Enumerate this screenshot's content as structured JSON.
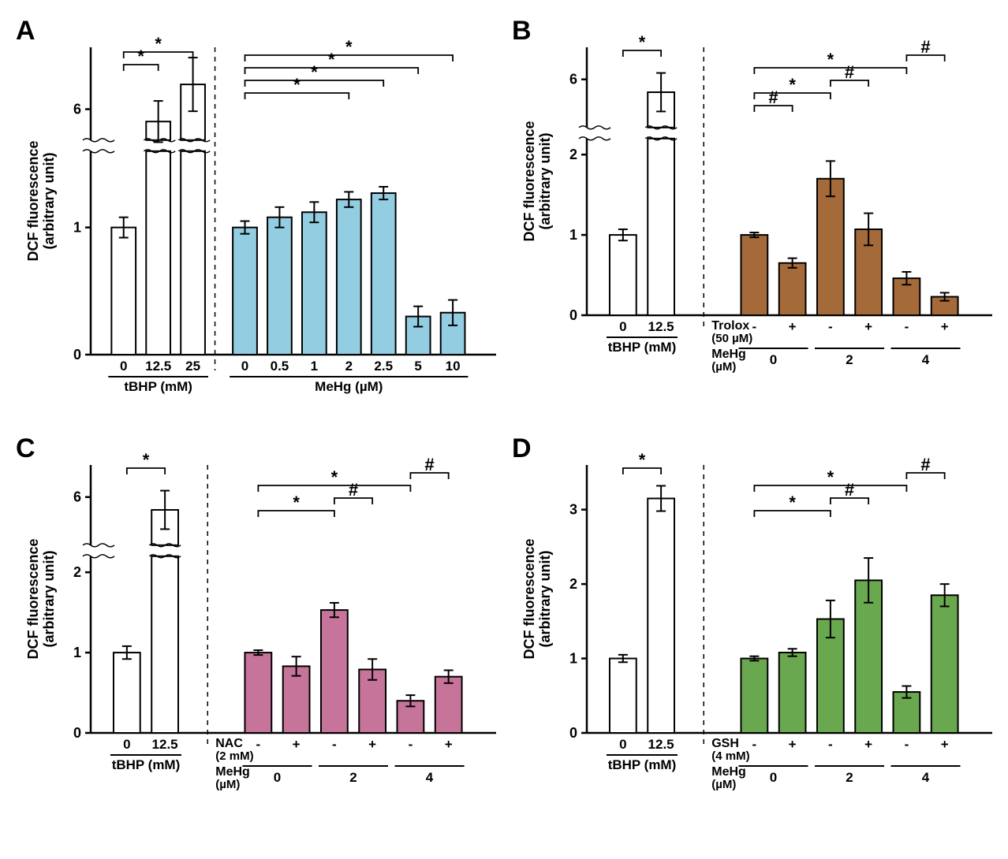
{
  "global": {
    "ylabel": "DCF fluorescence\n(arbitrary unit)",
    "label_fontsize": 18,
    "tick_fontsize": 16,
    "axis_color": "#000000",
    "bar_stroke": "#000000",
    "white_fill": "#ffffff",
    "panel_label_fontsize": 34
  },
  "panelA": {
    "label": "A",
    "type": "bar",
    "left": {
      "bars": [
        {
          "label": "0",
          "value": 1.0,
          "err": 0.08,
          "fill": "#ffffff"
        },
        {
          "label": "12.5",
          "value": 5.4,
          "err": 1.0,
          "fill": "#ffffff"
        },
        {
          "label": "25",
          "value": 7.2,
          "err": 1.3,
          "fill": "#ffffff"
        }
      ],
      "xgroup": "tBHP (mM)"
    },
    "right": {
      "bars": [
        {
          "label": "0",
          "value": 1.0,
          "err": 0.05,
          "fill": "#93cde2"
        },
        {
          "label": "0.5",
          "value": 1.08,
          "err": 0.08,
          "fill": "#93cde2"
        },
        {
          "label": "1",
          "value": 1.12,
          "err": 0.08,
          "fill": "#93cde2"
        },
        {
          "label": "2",
          "value": 1.22,
          "err": 0.06,
          "fill": "#93cde2"
        },
        {
          "label": "2.5",
          "value": 1.27,
          "err": 0.05,
          "fill": "#93cde2"
        },
        {
          "label": "5",
          "value": 0.3,
          "err": 0.08,
          "fill": "#93cde2"
        },
        {
          "label": "10",
          "value": 0.33,
          "err": 0.1,
          "fill": "#93cde2"
        }
      ],
      "xgroup": "MeHg (µM)"
    },
    "ybreak": {
      "lower_max": 1.6,
      "upper_min": 4.5,
      "upper_max": 9.0,
      "lower_ticks": [
        0,
        1
      ],
      "upper_ticks": [
        6
      ]
    },
    "sigs_left": [
      {
        "from": 0,
        "to": 1,
        "symbol": "*"
      },
      {
        "from": 0,
        "to": 2,
        "symbol": "*"
      }
    ],
    "sigs_right": [
      {
        "from": 0,
        "to": 3,
        "symbol": "*"
      },
      {
        "from": 0,
        "to": 4,
        "symbol": "*"
      },
      {
        "from": 0,
        "to": 5,
        "symbol": "*"
      },
      {
        "from": 0,
        "to": 6,
        "symbol": "*"
      }
    ]
  },
  "panelB": {
    "label": "B",
    "type": "bar",
    "left": {
      "bars": [
        {
          "label": "0",
          "value": 1.0,
          "err": 0.07,
          "fill": "#ffffff"
        },
        {
          "label": "12.5",
          "value": 5.6,
          "err": 0.6,
          "fill": "#ffffff"
        }
      ],
      "xgroup": "tBHP (mM)"
    },
    "right": {
      "bars": [
        {
          "label": "-",
          "value": 1.0,
          "err": 0.03,
          "fill": "#a56a3a"
        },
        {
          "label": "+",
          "value": 0.65,
          "err": 0.06,
          "fill": "#a56a3a"
        },
        {
          "label": "-",
          "value": 1.7,
          "err": 0.22,
          "fill": "#a56a3a"
        },
        {
          "label": "+",
          "value": 1.07,
          "err": 0.2,
          "fill": "#a56a3a"
        },
        {
          "label": "-",
          "value": 0.46,
          "err": 0.08,
          "fill": "#a56a3a"
        },
        {
          "label": "+",
          "value": 0.23,
          "err": 0.05,
          "fill": "#a56a3a"
        }
      ],
      "row1_label": "Trolox\n(50 µM)",
      "row2_label": "MeHg\n(µM)",
      "row2_vals": [
        "0",
        "2",
        "4"
      ]
    },
    "ybreak": {
      "lower_max": 2.2,
      "upper_min": 4.5,
      "upper_max": 7.0,
      "lower_ticks": [
        0,
        1,
        2
      ],
      "upper_ticks": [
        6
      ]
    },
    "sigs_left": [
      {
        "from": 0,
        "to": 1,
        "symbol": "*"
      }
    ],
    "sigs_right": [
      {
        "from": 0,
        "to": 1,
        "symbol": "#",
        "level": 0
      },
      {
        "from": 0,
        "to": 2,
        "symbol": "*",
        "level": 1
      },
      {
        "from": 2,
        "to": 3,
        "symbol": "#",
        "level": 2
      },
      {
        "from": 0,
        "to": 4,
        "symbol": "*",
        "level": 3
      },
      {
        "from": 4,
        "to": 5,
        "symbol": "#",
        "level": 4
      }
    ]
  },
  "panelC": {
    "label": "C",
    "type": "bar",
    "left": {
      "bars": [
        {
          "label": "0",
          "value": 1.0,
          "err": 0.08,
          "fill": "#ffffff"
        },
        {
          "label": "12.5",
          "value": 5.6,
          "err": 0.6,
          "fill": "#ffffff"
        }
      ],
      "xgroup": "tBHP (mM)"
    },
    "right": {
      "bars": [
        {
          "label": "-",
          "value": 1.0,
          "err": 0.03,
          "fill": "#c7749a"
        },
        {
          "label": "+",
          "value": 0.83,
          "err": 0.12,
          "fill": "#c7749a"
        },
        {
          "label": "-",
          "value": 1.53,
          "err": 0.09,
          "fill": "#c7749a"
        },
        {
          "label": "+",
          "value": 0.79,
          "err": 0.13,
          "fill": "#c7749a"
        },
        {
          "label": "-",
          "value": 0.4,
          "err": 0.07,
          "fill": "#c7749a"
        },
        {
          "label": "+",
          "value": 0.7,
          "err": 0.08,
          "fill": "#c7749a"
        }
      ],
      "row1_label": "NAC\n(2 mM)",
      "row2_label": "MeHg\n(µM)",
      "row2_vals": [
        "0",
        "2",
        "4"
      ]
    },
    "ybreak": {
      "lower_max": 2.2,
      "upper_min": 4.5,
      "upper_max": 7.0,
      "lower_ticks": [
        0,
        1,
        2
      ],
      "upper_ticks": [
        6
      ]
    },
    "sigs_left": [
      {
        "from": 0,
        "to": 1,
        "symbol": "*"
      }
    ],
    "sigs_right": [
      {
        "from": 0,
        "to": 2,
        "symbol": "*",
        "level": 0
      },
      {
        "from": 2,
        "to": 3,
        "symbol": "#",
        "level": 1
      },
      {
        "from": 0,
        "to": 4,
        "symbol": "*",
        "level": 2
      },
      {
        "from": 4,
        "to": 5,
        "symbol": "#",
        "level": 3
      }
    ]
  },
  "panelD": {
    "label": "D",
    "type": "bar",
    "left": {
      "bars": [
        {
          "label": "0",
          "value": 1.0,
          "err": 0.05,
          "fill": "#ffffff"
        },
        {
          "label": "12.5",
          "value": 3.15,
          "err": 0.17,
          "fill": "#ffffff"
        }
      ],
      "xgroup": "tBHP (mM)"
    },
    "right": {
      "bars": [
        {
          "label": "-",
          "value": 1.0,
          "err": 0.03,
          "fill": "#6aa84f"
        },
        {
          "label": "+",
          "value": 1.08,
          "err": 0.05,
          "fill": "#6aa84f"
        },
        {
          "label": "-",
          "value": 1.53,
          "err": 0.25,
          "fill": "#6aa84f"
        },
        {
          "label": "+",
          "value": 2.05,
          "err": 0.3,
          "fill": "#6aa84f"
        },
        {
          "label": "-",
          "value": 0.55,
          "err": 0.08,
          "fill": "#6aa84f"
        },
        {
          "label": "+",
          "value": 1.85,
          "err": 0.15,
          "fill": "#6aa84f"
        }
      ],
      "row1_label": "GSH\n(4 mM)",
      "row2_label": "MeHg\n(µM)",
      "row2_vals": [
        "0",
        "2",
        "4"
      ]
    },
    "ylim": [
      0,
      3.6
    ],
    "yticks": [
      0,
      1,
      2,
      3
    ],
    "sigs_left": [
      {
        "from": 0,
        "to": 1,
        "symbol": "*"
      }
    ],
    "sigs_right": [
      {
        "from": 0,
        "to": 2,
        "symbol": "*",
        "level": 0
      },
      {
        "from": 2,
        "to": 3,
        "symbol": "#",
        "level": 1
      },
      {
        "from": 0,
        "to": 4,
        "symbol": "*",
        "level": 2
      },
      {
        "from": 4,
        "to": 5,
        "symbol": "#",
        "level": 3
      }
    ]
  }
}
